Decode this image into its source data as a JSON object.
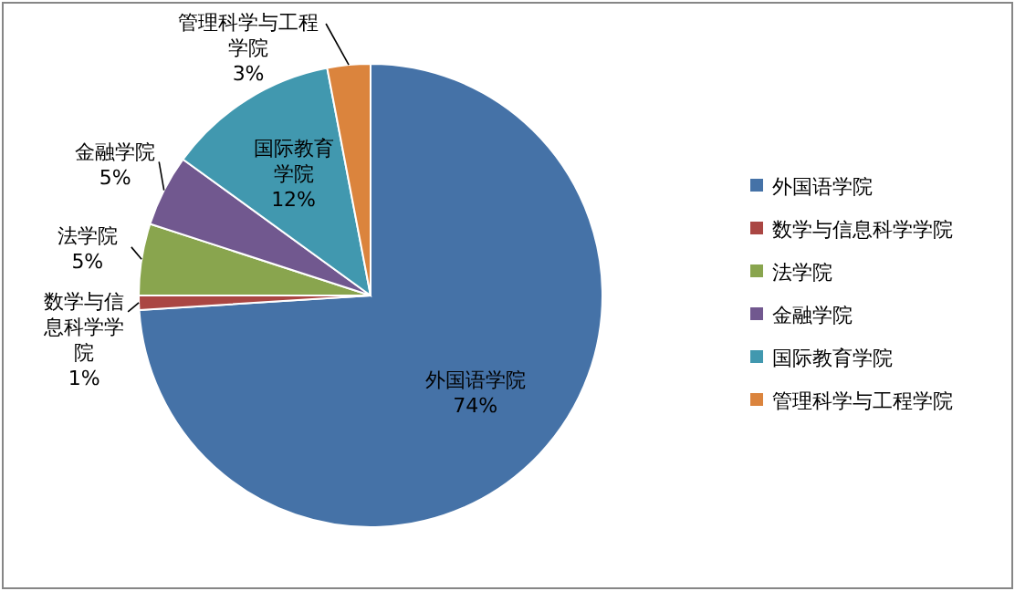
{
  "chart_data": {
    "type": "pie",
    "categories": [
      "外国语学院",
      "数学与信息科学学院",
      "法学院",
      "金融学院",
      "国际教育学院",
      "管理科学与工程学院"
    ],
    "values": [
      74,
      1,
      5,
      5,
      12,
      3
    ],
    "colors": [
      "#4572a7",
      "#aa4643",
      "#89a54e",
      "#71588f",
      "#4198af",
      "#db843d"
    ],
    "value_labels": [
      "74%",
      "1%",
      "5%",
      "5%",
      "12%",
      "3%"
    ],
    "legend": "right"
  }
}
